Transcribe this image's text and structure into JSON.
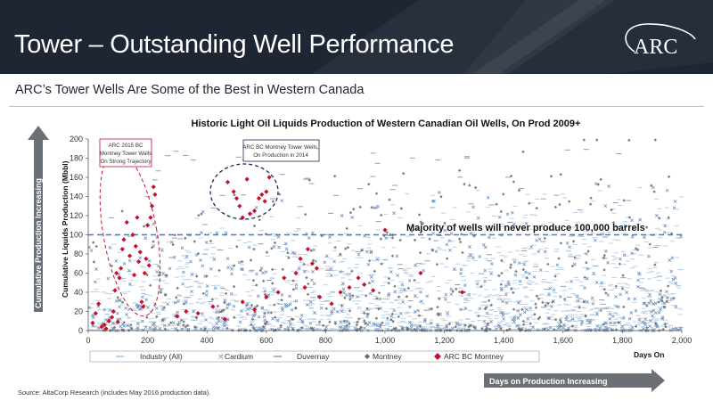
{
  "header": {
    "title": "Tower – Outstanding Well Performance",
    "logo": "ARC"
  },
  "subtitle": "ARC’s Tower Wells Are Some of the Best in Western Canada",
  "footer": "Source: AltaCorp Research (includes May 2016 production data).",
  "side_arrows": {
    "vertical": "Cumulative Production Increasing",
    "horizontal": "Days on Production Increasing"
  },
  "callouts": {
    "left": [
      "ARC 2015 BC",
      "Montney Tower Walls",
      "On Strong Trajectory"
    ],
    "right": [
      "ARC BC Montney Tower Wells,",
      "On Production in 2014"
    ]
  },
  "colors": {
    "banner": "#1e2533",
    "industry": "#a9c3dc",
    "cardium": "#6f93bd",
    "duvernay": "#8aa1b8",
    "montney": "#666666",
    "arc": "#c8102e",
    "reference_line": "#3f7fc4",
    "arrow": "#6b6f76"
  },
  "chart_data": {
    "type": "scatter",
    "title": "Historic Light Oil Liquids Production of Western Canadian Oil Wells, On Prod 2009+",
    "xlabel": "Days On",
    "ylabel": "Cumulative Liquids Production (Mbbl)",
    "xlim": [
      0,
      2000
    ],
    "ylim": [
      0,
      200
    ],
    "x_ticks": [
      "0",
      "200",
      "400",
      "600",
      "800",
      "1,000",
      "1,200",
      "1,400",
      "1,600",
      "1,800",
      "2,000"
    ],
    "y_ticks": [
      "0",
      "20",
      "40",
      "60",
      "80",
      "100",
      "120",
      "140",
      "160",
      "180",
      "200"
    ],
    "grid": false,
    "legend_position": "bottom",
    "reference_line": {
      "y": 100,
      "label": "Majority of wells will never produce 100,000 barrels"
    },
    "series": [
      {
        "name": "Industry (All)",
        "marker": "dash",
        "density": "very dense"
      },
      {
        "name": "Cardium",
        "marker": "x",
        "density": "dense"
      },
      {
        "name": "Duvernay",
        "marker": "dash",
        "density": "sparse"
      },
      {
        "name": "Montney",
        "marker": "diamond",
        "density": "moderate"
      },
      {
        "name": "ARC BC Montney",
        "marker": "diamond",
        "points": [
          [
            15,
            8
          ],
          [
            25,
            18
          ],
          [
            35,
            28
          ],
          [
            45,
            4
          ],
          [
            55,
            6
          ],
          [
            60,
            2
          ],
          [
            70,
            10
          ],
          [
            80,
            14
          ],
          [
            85,
            20
          ],
          [
            90,
            42
          ],
          [
            95,
            60
          ],
          [
            100,
            9
          ],
          [
            105,
            55
          ],
          [
            110,
            65
          ],
          [
            115,
            85
          ],
          [
            120,
            95
          ],
          [
            130,
            113
          ],
          [
            140,
            78
          ],
          [
            150,
            100
          ],
          [
            155,
            58
          ],
          [
            160,
            88
          ],
          [
            165,
            118
          ],
          [
            170,
            72
          ],
          [
            175,
            82
          ],
          [
            180,
            30
          ],
          [
            185,
            25
          ],
          [
            190,
            60
          ],
          [
            195,
            75
          ],
          [
            200,
            110
          ],
          [
            205,
            68
          ],
          [
            210,
            118
          ],
          [
            215,
            130
          ],
          [
            220,
            150
          ],
          [
            225,
            142
          ],
          [
            470,
            155
          ],
          [
            490,
            145
          ],
          [
            500,
            138
          ],
          [
            510,
            130
          ],
          [
            520,
            118
          ],
          [
            535,
            158
          ],
          [
            545,
            122
          ],
          [
            560,
            125
          ],
          [
            575,
            138
          ],
          [
            585,
            142
          ],
          [
            595,
            135
          ],
          [
            600,
            145
          ],
          [
            610,
            160
          ],
          [
            300,
            15
          ],
          [
            330,
            20
          ],
          [
            370,
            18
          ],
          [
            420,
            25
          ],
          [
            460,
            12
          ],
          [
            520,
            30
          ],
          [
            560,
            22
          ],
          [
            600,
            35
          ],
          [
            640,
            40
          ],
          [
            660,
            55
          ],
          [
            700,
            60
          ],
          [
            715,
            75
          ],
          [
            730,
            45
          ],
          [
            740,
            85
          ],
          [
            755,
            70
          ],
          [
            770,
            65
          ],
          [
            780,
            35
          ],
          [
            820,
            28
          ],
          [
            850,
            40
          ],
          [
            880,
            45
          ],
          [
            910,
            55
          ],
          [
            930,
            48
          ],
          [
            960,
            42
          ],
          [
            1000,
            105
          ],
          [
            1120,
            60
          ],
          [
            1260,
            40
          ]
        ]
      }
    ]
  }
}
